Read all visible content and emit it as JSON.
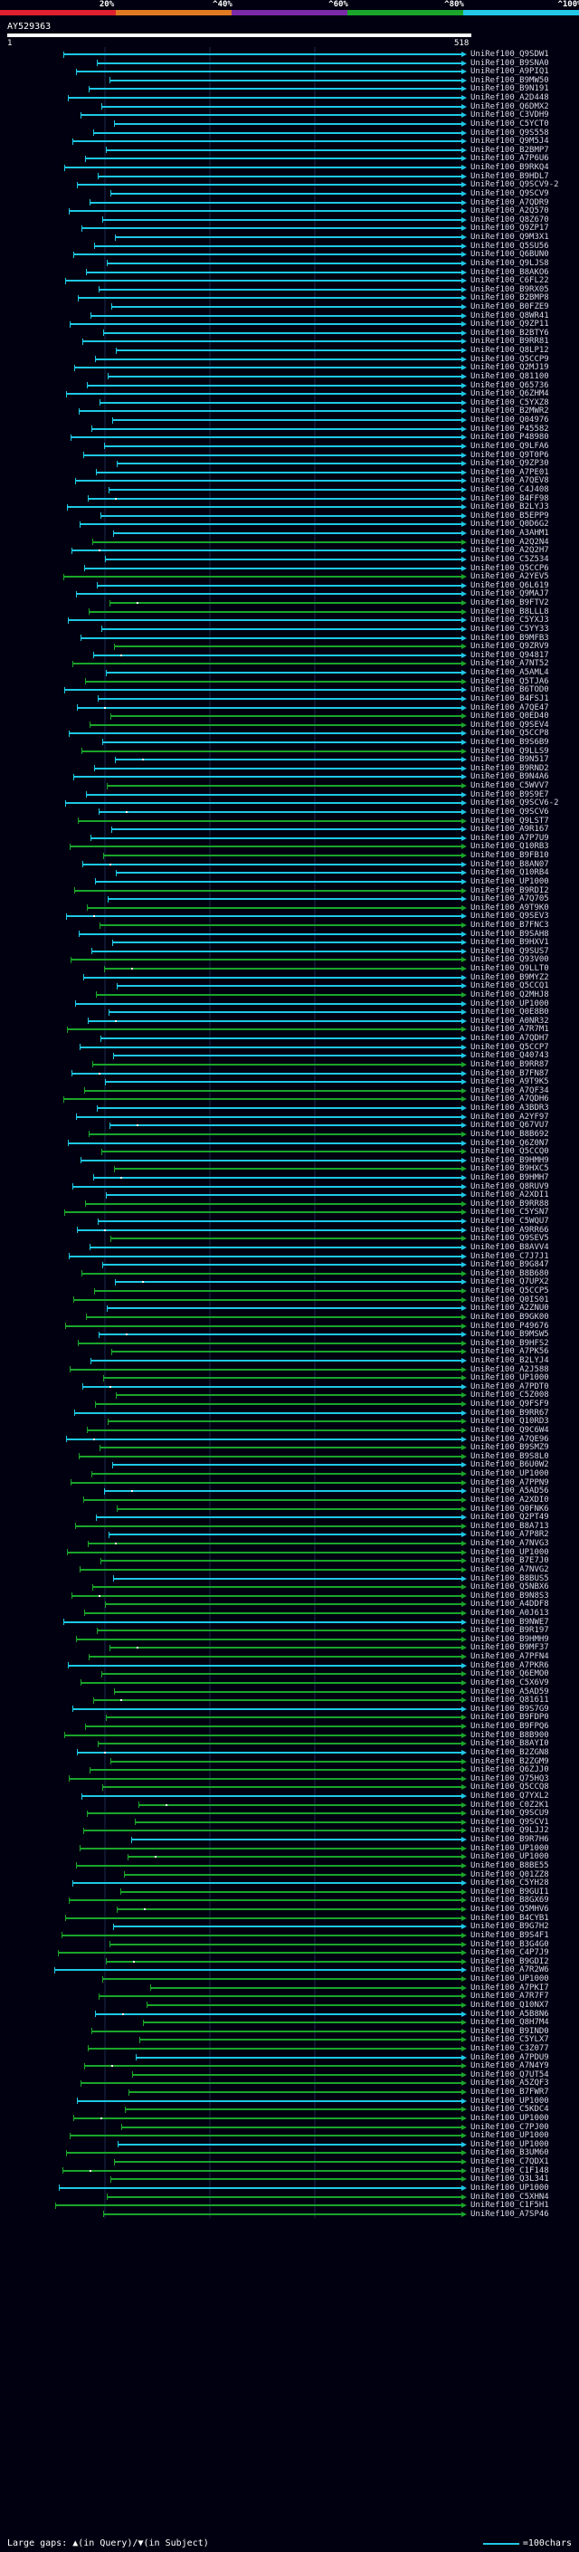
{
  "legend": {
    "labels": [
      "20%",
      "^40%",
      "^60%",
      "^80%",
      "^100%"
    ],
    "colors": [
      "#e02030",
      "#e07a20",
      "#7a2aa6",
      "#1aa52a",
      "#22c8e6"
    ]
  },
  "query": {
    "id": "AY529363",
    "start_label": "1",
    "end_label": "518"
  },
  "hits": [
    "UniRef100_Q9SDW1",
    "UniRef100_B9SNA0",
    "UniRef100_A9PIQ1",
    "UniRef100_B9MW50",
    "UniRef100_B9N191",
    "UniRef100_A2D448",
    "UniRef100_Q6DMX2",
    "UniRef100_C3VDH9",
    "UniRef100_C5YCT0",
    "UniRef100_Q9S558",
    "UniRef100_Q9M5J4",
    "UniRef100_B2BMP7",
    "UniRef100_A7P6U6",
    "UniRef100_B9RKQ4",
    "UniRef100_B9HDL7",
    "UniRef100_Q9SCV9-2",
    "UniRef100_Q9SCV9",
    "UniRef100_A7QDR9",
    "UniRef100_A2Q570",
    "UniRef100_Q8Z670",
    "UniRef100_Q9ZP17",
    "UniRef100_Q9M3X1",
    "UniRef100_Q5SU56",
    "UniRef100_Q6BUN0",
    "UniRef100_Q9LJS8",
    "UniRef100_B8AKO6",
    "UniRef100_C6FL22",
    "UniRef100_B9RX05",
    "UniRef100_B2BMP8",
    "UniRef100_B0FZE9",
    "UniRef100_Q8WR41",
    "UniRef100_Q9ZP11",
    "UniRef100_B2BTY6",
    "UniRef100_B9RR81",
    "UniRef100_Q8LP12",
    "UniRef100_Q5CCP9",
    "UniRef100_Q2MJ19",
    "UniRef100_Q81100",
    "UniRef100_Q65736",
    "UniRef100_Q6ZHM4",
    "UniRef100_C5YXZ8",
    "UniRef100_B2MWR2",
    "UniRef100_Q04976",
    "UniRef100_P45582",
    "UniRef100_P48980",
    "UniRef100_Q9LFA6",
    "UniRef100_Q9T0P6",
    "UniRef100_Q9ZP30",
    "UniRef100_A7PE01",
    "UniRef100_A7QEV8",
    "UniRef100_C4J408",
    "UniRef100_B4FF98",
    "UniRef100_B2LYJ3",
    "UniRef100_B5EPP9",
    "UniRef100_Q0D6G2",
    "UniRef100_A3AHM1",
    "UniRef100_A2Q2N4",
    "UniRef100_A2Q2H7",
    "UniRef100_C5Z534",
    "UniRef100_Q5CCP6",
    "UniRef100_A2YEV5",
    "UniRef100_Q6L619",
    "UniRef100_Q9MAJ7",
    "UniRef100_B9FTV2",
    "UniRef100_B8LLL8",
    "UniRef100_C5YXJ3",
    "UniRef100_C5YY33",
    "UniRef100_B9MFB3",
    "UniRef100_Q9ZRV9",
    "UniRef100_Q94817",
    "UniRef100_A7NT52",
    "UniRef100_A5AML4",
    "UniRef100_Q5TJA6",
    "UniRef100_B6TOD0",
    "UniRef100_B4FSJ1",
    "UniRef100_A7QE47",
    "UniRef100_Q0ED40",
    "UniRef100_Q9SEV4",
    "UniRef100_Q5CCP8",
    "UniRef100_B9S6B9",
    "UniRef100_Q9LLS9",
    "UniRef100_B9N517",
    "UniRef100_B9RND2",
    "UniRef100_B9N4A6",
    "UniRef100_C5WVV7",
    "UniRef100_B9S9E7",
    "UniRef100_Q9SCV6-2",
    "UniRef100_Q9SCV6",
    "UniRef100_Q9LST7",
    "UniRef100_A9R167",
    "UniRef100_A7P7U9",
    "UniRef100_Q10RB3",
    "UniRef100_B9FB10",
    "UniRef100_B8AN07",
    "UniRef100_Q10RB4",
    "UniRef100_UP1000",
    "UniRef100_B9RDI2",
    "UniRef100_A7Q705",
    "UniRef100_A9T9K0",
    "UniRef100_Q9SEV3",
    "UniRef100_B7FNC3",
    "UniRef100_B9SAH8",
    "UniRef100_B9HXV1",
    "UniRef100_Q9SUS7",
    "UniRef100_Q93V00",
    "UniRef100_Q9LLT0",
    "UniRef100_B9MYZ2",
    "UniRef100_Q5CCQ1",
    "UniRef100_Q2MHJ8",
    "UniRef100_UP1000",
    "UniRef100_Q0E8B0",
    "UniRef100_A0NR32",
    "UniRef100_A7R7M1",
    "UniRef100_A7QDH7",
    "UniRef100_Q5CCP7",
    "UniRef100_Q40743",
    "UniRef100_B9RR87",
    "UniRef100_B7FN87",
    "UniRef100_A9T9K5",
    "UniRef100_A7QF34",
    "UniRef100_A7QDH6",
    "UniRef100_A3BDR3",
    "UniRef100_A2YF97",
    "UniRef100_Q67VU7",
    "UniRef100_B8B692",
    "UniRef100_Q6Z0N7",
    "UniRef100_Q5CCQ0",
    "UniRef100_B9HMH9",
    "UniRef100_B9HXC5",
    "UniRef100_B9HMH7",
    "UniRef100_Q8RUV9",
    "UniRef100_A2XDI1",
    "UniRef100_B9RR88",
    "UniRef100_C5YSN7",
    "UniRef100_C5WQU7",
    "UniRef100_A9RR66",
    "UniRef100_Q9SEV5",
    "UniRef100_B8AVV4",
    "UniRef100_C7J7J1",
    "UniRef100_B9G847",
    "UniRef100_B8B680",
    "UniRef100_Q7UPX2",
    "UniRef100_Q5CCP5",
    "UniRef100_Q0IS01",
    "UniRef100_A2ZNU0",
    "UniRef100_B9GK00",
    "UniRef100_P49676",
    "UniRef100_B9MSW5",
    "UniRef100_B9HFS2",
    "UniRef100_A7PK56",
    "UniRef100_B2LYJ4",
    "UniRef100_A2J588",
    "UniRef100_UP1000",
    "UniRef100_A7PDT0",
    "UniRef100_C5Z008",
    "UniRef100_Q9FSF9",
    "UniRef100_B9RR67",
    "UniRef100_Q10RD3",
    "UniRef100_Q9C6W4",
    "UniRef100_A7QE96",
    "UniRef100_B9SMZ9",
    "UniRef100_B9S8L0",
    "UniRef100_B6U0W2",
    "UniRef100_UP1000",
    "UniRef100_A7PPN9",
    "UniRef100_A5AD56",
    "UniRef100_A2XDI0",
    "UniRef100_Q0FNK6",
    "UniRef100_Q2PT49",
    "UniRef100_B8A713",
    "UniRef100_A7P8R2",
    "UniRef100_A7NVG3",
    "UniRef100_UP1000",
    "UniRef100_B7E7J0",
    "UniRef100_A7NVG2",
    "UniRef100_B8BUS5",
    "UniRef100_Q5NBX6",
    "UniRef100_B9N8S3",
    "UniRef100_A4DDF8",
    "UniRef100_A0J613",
    "UniRef100_B9NWE7",
    "UniRef100_B9R197",
    "UniRef100_B9HMH9",
    "UniRef100_B9MF37",
    "UniRef100_A7PFN4",
    "UniRef100_A7PKR6",
    "UniRef100_Q6EMO0",
    "UniRef100_C5X6V9",
    "UniRef100_A5AD59",
    "UniRef100_Q81611",
    "UniRef100_B9S7G9",
    "UniRef100_B9FDP0",
    "UniRef100_B9FPQ6",
    "UniRef100_B8B900",
    "UniRef100_B8AYI0",
    "UniRef100_B2ZGN8",
    "UniRef100_B2ZGM9",
    "UniRef100_Q6ZJJ0",
    "UniRef100_Q75HQ3",
    "UniRef100_Q5CCQ8",
    "UniRef100_Q7YXL2",
    "UniRef100_C0Z2K1",
    "UniRef100_Q9SCU9",
    "UniRef100_Q9SCV1",
    "UniRef100_Q9LJJ2",
    "UniRef100_B9R7H6",
    "UniRef100_UP1000",
    "UniRef100_UP1000",
    "UniRef100_B8BE55",
    "UniRef100_Q01ZZ8",
    "UniRef100_C5YH28",
    "UniRef100_B9GUI1",
    "UniRef100_B8GX69",
    "UniRef100_Q5MHV6",
    "UniRef100_B4CYB1",
    "UniRef100_B9G7H2",
    "UniRef100_B9S4F1",
    "UniRef100_B3G4G0",
    "UniRef100_C4P7J9",
    "UniRef100_B9GDI2",
    "UniRef100_A7R2W6",
    "UniRef100_UP1000",
    "UniRef100_A7PKI7",
    "UniRef100_A7R7F7",
    "UniRef100_Q10NX7",
    "UniRef100_A5B8N6",
    "UniRef100_Q8H7M4",
    "UniRef100_B9IND0",
    "UniRef100_C5YLX7",
    "UniRef100_C3Z077",
    "UniRef100_A7PDU9",
    "UniRef100_A7N4Y9",
    "UniRef100_Q7UT54",
    "UniRef100_A5ZQF3",
    "UniRef100_B7FWR7",
    "UniRef100_UP1000",
    "UniRef100_C5KDC4",
    "UniRef100_UP1000",
    "UniRef100_C7PJ00",
    "UniRef100_UP1000",
    "UniRef100_UP1000",
    "UniRef100_B3UM60",
    "UniRef100_C7QDX1",
    "UniRef100_C1F148",
    "UniRef100_Q3L341",
    "UniRef100_UP1000",
    "UniRef100_C5XHN4",
    "UniRef100_C1F5H1",
    "UniRef100_A7SP46"
  ],
  "footer": {
    "left_text": "Large gaps: ▲(in Query)/▼(in Subject)",
    "scale_text": "=100chars"
  }
}
